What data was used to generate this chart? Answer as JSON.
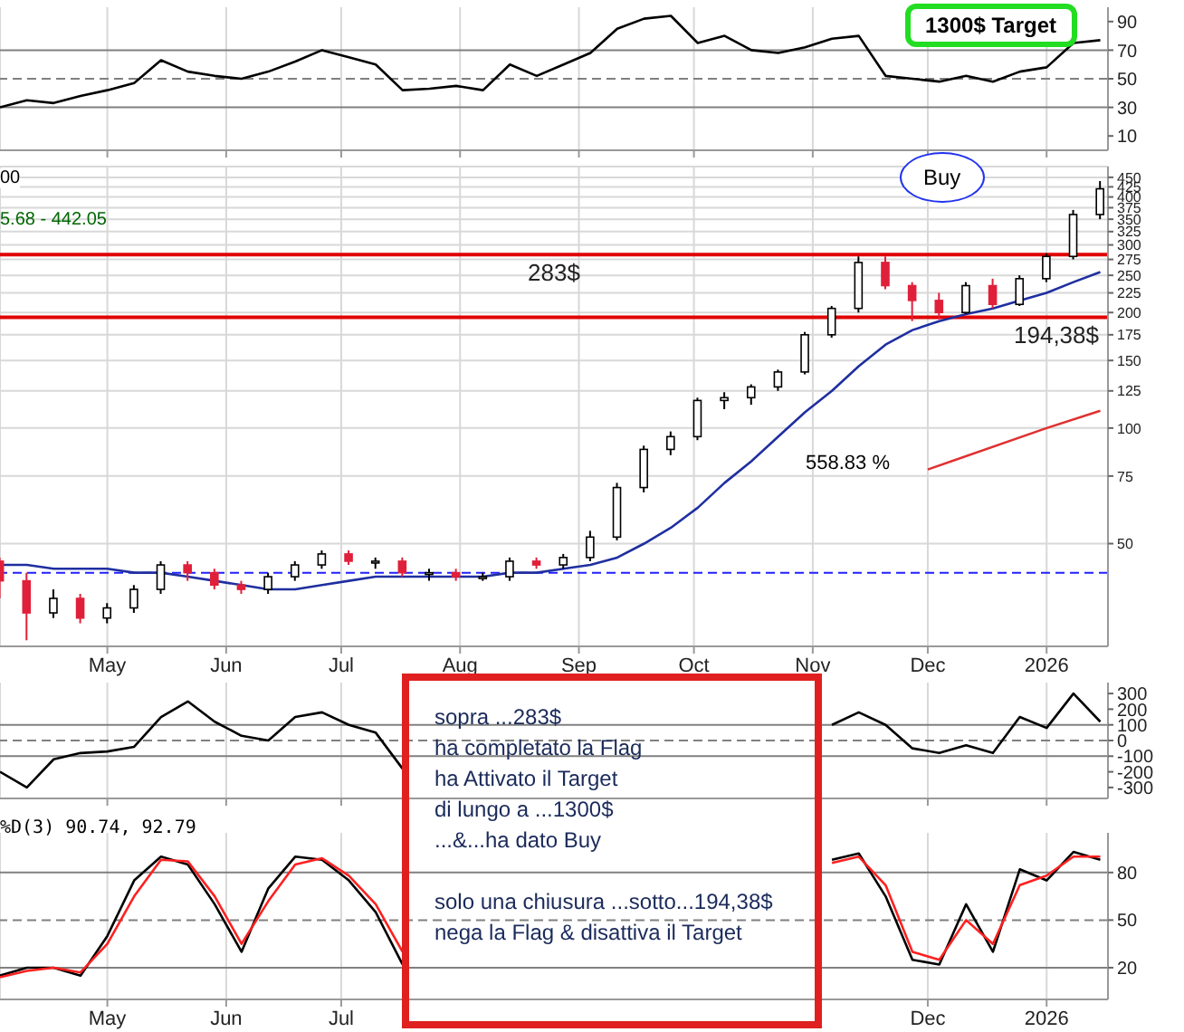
{
  "chart_data": [
    {
      "type": "line",
      "x": [
        "2025-04-03",
        "2025-04-10",
        "2025-04-17",
        "2025-04-24",
        "2025-05-01",
        "2025-05-08",
        "2025-05-15",
        "2025-05-22",
        "2025-05-29",
        "2025-06-05",
        "2025-06-12",
        "2025-06-19",
        "2025-06-26",
        "2025-07-03",
        "2025-07-10",
        "2025-07-17",
        "2025-07-24",
        "2025-07-31",
        "2025-08-07",
        "2025-08-14",
        "2025-08-21",
        "2025-08-28",
        "2025-09-04",
        "2025-09-11",
        "2025-09-18",
        "2025-09-25",
        "2025-10-02",
        "2025-10-09",
        "2025-10-16",
        "2025-10-23",
        "2025-10-30",
        "2025-11-06",
        "2025-11-13",
        "2025-11-20",
        "2025-11-27",
        "2025-12-04",
        "2025-12-11",
        "2025-12-18",
        "2025-12-25",
        "2026-01-01",
        "2026-01-08",
        "2026-01-15"
      ],
      "series": [
        {
          "color": "#000000",
          "values": [
            30,
            35,
            33,
            38,
            42,
            47,
            63,
            55,
            52,
            50,
            55,
            62,
            70,
            65,
            60,
            42,
            43,
            45,
            42,
            60,
            52,
            60,
            68,
            85,
            92,
            94,
            75,
            80,
            70,
            68,
            72,
            78,
            80,
            52,
            50,
            48,
            52,
            48,
            55,
            58,
            75,
            77
          ]
        }
      ],
      "xlim": [
        "2025-04-03",
        "2026-01-17"
      ],
      "xticks": [
        {
          "value": "2025-05-01",
          "label": null
        },
        {
          "value": "2025-06-01",
          "label": null
        },
        {
          "value": "2025-07-01",
          "label": null
        },
        {
          "value": "2025-08-01",
          "label": null
        },
        {
          "value": "2025-09-01",
          "label": null
        },
        {
          "value": "2025-10-01",
          "label": null
        },
        {
          "value": "2025-11-01",
          "label": null
        },
        {
          "value": "2025-12-01",
          "label": null
        },
        {
          "value": "2026-01-01",
          "label": null
        }
      ],
      "ylim": [
        0,
        100
      ],
      "yticks": [
        10,
        30,
        50,
        70,
        90
      ],
      "tick_labels": "y",
      "grid": "x",
      "ref_lines": [
        {
          "axis": "y",
          "value": 70,
          "color": "#808080"
        },
        {
          "axis": "y",
          "value": 30,
          "color": "#808080"
        },
        {
          "axis": "y",
          "value": 50,
          "color": "#808080",
          "line_style": "dashed"
        }
      ],
      "annotations": [
        "1300$ Target"
      ]
    },
    {
      "type": "candlestick",
      "log": true,
      "x": [
        "2025-04-03",
        "2025-04-10",
        "2025-04-17",
        "2025-04-24",
        "2025-05-01",
        "2025-05-08",
        "2025-05-15",
        "2025-05-22",
        "2025-05-29",
        "2025-06-05",
        "2025-06-12",
        "2025-06-19",
        "2025-06-26",
        "2025-07-03",
        "2025-07-10",
        "2025-07-17",
        "2025-07-24",
        "2025-07-31",
        "2025-08-07",
        "2025-08-14",
        "2025-08-21",
        "2025-08-28",
        "2025-09-04",
        "2025-09-11",
        "2025-09-18",
        "2025-09-25",
        "2025-10-02",
        "2025-10-09",
        "2025-10-16",
        "2025-10-23",
        "2025-10-30",
        "2025-11-06",
        "2025-11-13",
        "2025-11-20",
        "2025-11-27",
        "2025-12-04",
        "2025-12-11",
        "2025-12-18",
        "2025-12-25",
        "2026-01-01",
        "2026-01-08",
        "2026-01-15"
      ],
      "ohlc": [
        [
          45,
          46,
          36,
          40
        ],
        [
          40,
          42,
          28,
          33
        ],
        [
          33,
          38,
          32,
          36
        ],
        [
          36,
          37,
          31,
          32
        ],
        [
          32,
          35,
          31,
          34
        ],
        [
          34,
          39,
          33,
          38
        ],
        [
          38,
          45,
          37,
          44
        ],
        [
          44,
          45,
          40,
          42
        ],
        [
          42,
          43,
          38,
          39
        ],
        [
          39,
          40,
          37,
          38
        ],
        [
          38,
          42,
          37,
          41
        ],
        [
          41,
          45,
          40,
          44
        ],
        [
          44,
          48,
          43,
          47
        ],
        [
          47,
          48,
          44,
          45
        ],
        [
          45,
          46,
          43,
          45
        ],
        [
          45,
          46,
          41,
          42
        ],
        [
          42,
          43,
          40,
          42
        ],
        [
          42,
          43,
          40,
          41
        ],
        [
          41,
          42,
          40,
          41
        ],
        [
          41,
          46,
          40,
          45
        ],
        [
          45,
          46,
          43,
          44
        ],
        [
          44,
          47,
          43,
          46
        ],
        [
          46,
          54,
          45,
          52
        ],
        [
          52,
          72,
          51,
          70
        ],
        [
          70,
          90,
          68,
          88
        ],
        [
          88,
          98,
          85,
          95
        ],
        [
          95,
          120,
          93,
          118
        ],
        [
          118,
          124,
          112,
          120
        ],
        [
          120,
          130,
          115,
          128
        ],
        [
          128,
          142,
          125,
          140
        ],
        [
          140,
          178,
          138,
          175
        ],
        [
          175,
          208,
          172,
          205
        ],
        [
          205,
          280,
          200,
          270
        ],
        [
          270,
          280,
          230,
          235
        ],
        [
          235,
          240,
          190,
          215
        ],
        [
          215,
          225,
          192,
          200
        ],
        [
          200,
          240,
          198,
          235
        ],
        [
          235,
          245,
          205,
          210
        ],
        [
          210,
          250,
          208,
          245
        ],
        [
          245,
          285,
          240,
          280
        ],
        [
          280,
          370,
          275,
          360
        ],
        [
          360,
          440,
          350,
          420
        ]
      ],
      "series": [
        {
          "type": "line",
          "color": "#1f2fa0",
          "values": [
            44,
            44,
            43,
            43,
            43,
            42,
            42,
            41,
            40,
            39,
            38,
            38,
            39,
            40,
            41,
            41,
            41,
            41,
            41,
            42,
            42,
            43,
            44,
            46,
            50,
            55,
            62,
            72,
            82,
            95,
            110,
            125,
            145,
            165,
            180,
            190,
            198,
            205,
            215,
            225,
            240,
            255
          ]
        },
        {
          "type": "line",
          "color": "#e03030",
          "x": [
            "2025-12-01",
            "2026-01-01",
            "2026-01-15"
          ],
          "values": [
            78,
            100,
            111
          ]
        }
      ],
      "xlim": [
        "2025-04-03",
        "2026-01-17"
      ],
      "xticks": [
        {
          "value": "2025-05-01",
          "label": "May"
        },
        {
          "value": "2025-06-01",
          "label": "Jun"
        },
        {
          "value": "2025-07-01",
          "label": "Jul"
        },
        {
          "value": "2025-08-01",
          "label": "Aug"
        },
        {
          "value": "2025-09-01",
          "label": "Sep"
        },
        {
          "value": "2025-10-01",
          "label": "Oct"
        },
        {
          "value": "2025-11-01",
          "label": "Nov"
        },
        {
          "value": "2025-12-01",
          "label": "Dec"
        },
        {
          "value": "2026-01-01",
          "label": "2026"
        }
      ],
      "ylim": [
        27,
        480
      ],
      "yticks": [
        50,
        75,
        100,
        125,
        150,
        175,
        200,
        225,
        250,
        275,
        300,
        325,
        350,
        375,
        400,
        425,
        450
      ],
      "grid": true,
      "ref_lines": [
        {
          "axis": "y",
          "value": 283,
          "label": "283$",
          "color": "#e00000"
        },
        {
          "axis": "y",
          "value": 194.38,
          "label": "194,38$",
          "color": "#e00000"
        },
        {
          "axis": "y",
          "value": 42,
          "color": "#2020ff",
          "line_style": "dashed"
        }
      ],
      "annotations": [
        "558.83 %",
        "Buy",
        "5.68 - 442.05",
        "00"
      ]
    },
    {
      "type": "line",
      "x": [
        "2025-04-03",
        "2025-04-10",
        "2025-04-17",
        "2025-04-24",
        "2025-05-01",
        "2025-05-08",
        "2025-05-15",
        "2025-05-22",
        "2025-05-29",
        "2025-06-05",
        "2025-06-12",
        "2025-06-19",
        "2025-06-26",
        "2025-07-03",
        "2025-07-10",
        "2025-07-17",
        "2025-07-24",
        "2025-07-31",
        "2025-08-07",
        "2025-08-14",
        "2025-08-21",
        "2025-08-28",
        "2025-09-04",
        "2025-09-11",
        "2025-09-18",
        "2025-09-25",
        "2025-10-02",
        "2025-10-09",
        "2025-10-16",
        "2025-10-23",
        "2025-10-30",
        "2025-11-06",
        "2025-11-13",
        "2025-11-20",
        "2025-11-27",
        "2025-12-04",
        "2025-12-11",
        "2025-12-18",
        "2025-12-25",
        "2026-01-01",
        "2026-01-08",
        "2026-01-15"
      ],
      "series": [
        {
          "color": "#000000",
          "values": [
            -200,
            -300,
            -120,
            -80,
            -70,
            -40,
            150,
            250,
            120,
            30,
            0,
            150,
            180,
            100,
            50,
            -180,
            null,
            null,
            null,
            null,
            null,
            null,
            null,
            null,
            null,
            null,
            null,
            null,
            null,
            null,
            null,
            100,
            180,
            100,
            -50,
            -80,
            -30,
            -80,
            150,
            80,
            300,
            120
          ]
        }
      ],
      "xlim": [
        "2025-04-03",
        "2026-01-17"
      ],
      "xticks": [
        {
          "value": "2025-05-01",
          "label": null
        },
        {
          "value": "2025-06-01",
          "label": null
        },
        {
          "value": "2025-07-01",
          "label": null
        },
        {
          "value": "2025-12-01",
          "label": null
        },
        {
          "value": "2026-01-01",
          "label": null
        }
      ],
      "ylim": [
        -370,
        370
      ],
      "yticks": [
        -300,
        -200,
        -100,
        0,
        100,
        200,
        300
      ],
      "tick_labels": "y",
      "grid": "x",
      "ref_lines": [
        {
          "axis": "y",
          "value": 100,
          "color": "#808080"
        },
        {
          "axis": "y",
          "value": -100,
          "color": "#808080"
        },
        {
          "axis": "y",
          "value": 0,
          "color": "#808080",
          "line_style": "dashed"
        }
      ],
      "annotations": [
        "sopra ...283$\nha completato la Flag\nha Attivato il Target\ndi lungo a ...1300$\n...&...ha dato Buy\n\nsolo una chiusura ...sotto...194,38$\nnega la Flag & disattiva il Target"
      ]
    },
    {
      "type": "line",
      "x": [
        "2025-04-03",
        "2025-04-10",
        "2025-04-17",
        "2025-04-24",
        "2025-05-01",
        "2025-05-08",
        "2025-05-15",
        "2025-05-22",
        "2025-05-29",
        "2025-06-05",
        "2025-06-12",
        "2025-06-19",
        "2025-06-26",
        "2025-07-03",
        "2025-07-10",
        "2025-07-17",
        "2025-07-24",
        "2025-07-31",
        "2025-08-07",
        "2025-08-14",
        "2025-08-21",
        "2025-08-28",
        "2025-09-04",
        "2025-09-11",
        "2025-09-18",
        "2025-09-25",
        "2025-10-02",
        "2025-10-09",
        "2025-10-16",
        "2025-10-23",
        "2025-10-30",
        "2025-11-06",
        "2025-11-13",
        "2025-11-20",
        "2025-11-27",
        "2025-12-04",
        "2025-12-11",
        "2025-12-18",
        "2025-12-25",
        "2026-01-01",
        "2026-01-08",
        "2026-01-15"
      ],
      "series": [
        {
          "color": "#000000",
          "values": [
            15,
            20,
            20,
            15,
            40,
            75,
            90,
            85,
            60,
            30,
            70,
            90,
            88,
            75,
            55,
            22,
            null,
            null,
            null,
            null,
            null,
            null,
            null,
            null,
            null,
            null,
            null,
            null,
            null,
            null,
            null,
            88,
            92,
            65,
            25,
            22,
            60,
            30,
            82,
            75,
            93,
            88
          ]
        },
        {
          "color": "#ff2020",
          "values": [
            14,
            18,
            20,
            17,
            35,
            65,
            88,
            87,
            65,
            35,
            62,
            85,
            89,
            78,
            60,
            30,
            null,
            null,
            null,
            null,
            null,
            null,
            null,
            null,
            null,
            null,
            null,
            null,
            null,
            null,
            null,
            86,
            90,
            72,
            30,
            25,
            50,
            35,
            72,
            78,
            90,
            90
          ]
        }
      ],
      "xlim": [
        "2025-04-03",
        "2026-01-17"
      ],
      "xticks": [
        {
          "value": "2025-05-01",
          "label": "May"
        },
        {
          "value": "2025-06-01",
          "label": "Jun"
        },
        {
          "value": "2025-07-01",
          "label": "Jul"
        },
        {
          "value": "2025-12-01",
          "label": "Dec"
        },
        {
          "value": "2026-01-01",
          "label": "2026"
        }
      ],
      "ylim": [
        0,
        105
      ],
      "yticks": [
        20,
        50,
        80
      ],
      "grid": "x",
      "ref_lines": [
        {
          "axis": "y",
          "value": 80,
          "color": "#808080"
        },
        {
          "axis": "y",
          "value": 20,
          "color": "#808080"
        },
        {
          "axis": "y",
          "value": 50,
          "color": "#808080",
          "line_style": "dashed"
        }
      ],
      "annotations": [
        "%D(3) 90.74, 92.79"
      ]
    }
  ]
}
